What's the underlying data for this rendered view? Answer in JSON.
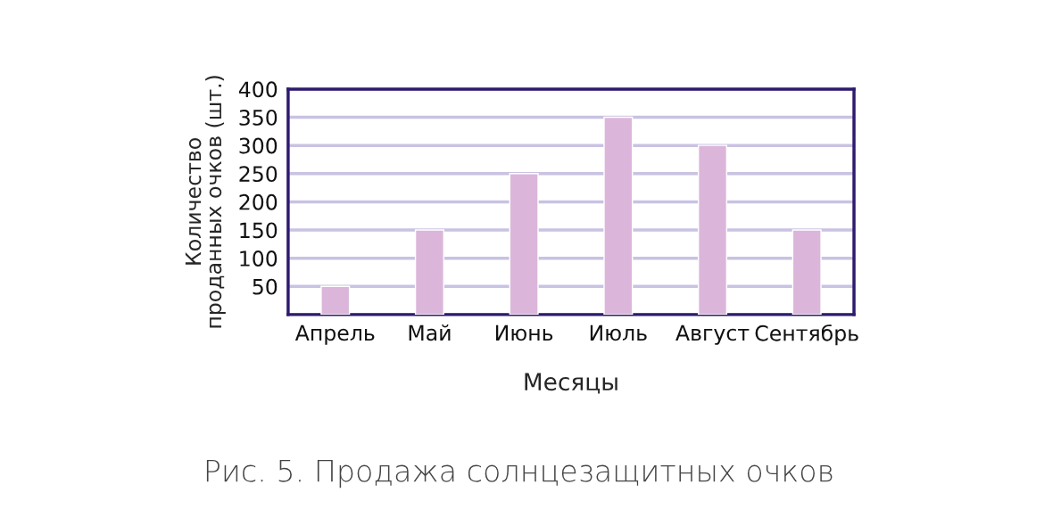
{
  "chart_data": {
    "type": "bar",
    "categories": [
      "Апрель",
      "Май",
      "Июнь",
      "Июль",
      "Август",
      "Сентябрь"
    ],
    "values": [
      50,
      150,
      250,
      350,
      300,
      150
    ],
    "color": "#dbb6da",
    "xlabel": "Месяцы",
    "ylabel": "Количество\nпроданных очков (шт.)",
    "ylim": [
      0,
      400
    ],
    "yticks": [
      {
        "value": 0,
        "label": null
      },
      50,
      100,
      150,
      200,
      250,
      300,
      350,
      400
    ],
    "grid": "y",
    "annotations": [
      "Рис. 5. Продажа солнцезащитных очков"
    ]
  }
}
